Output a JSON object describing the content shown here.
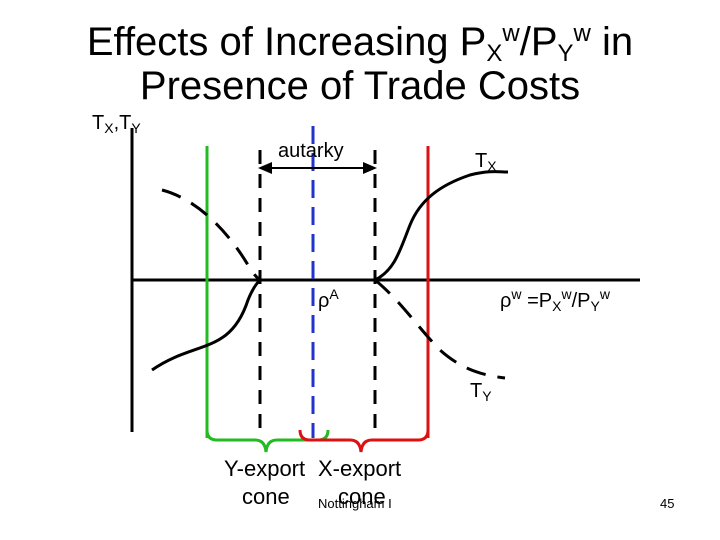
{
  "title": {
    "line1_a": "Effects of Increasing P",
    "sub_x": "X",
    "sup_w1": "w",
    "slash": "/P",
    "sub_y": "Y",
    "sup_w2": "w",
    "line1_b": " in",
    "line2": "Presence of Trade Costs"
  },
  "labels": {
    "y_axis_t": "T",
    "y_axis_sub_x": "X",
    "y_axis_comma": ",T",
    "y_axis_sub_y": "Y",
    "autarky": "autarky",
    "tx_t": "T",
    "tx_sub": "X",
    "ty_t": "T",
    "ty_sub": "Y",
    "rho_a": "ρ",
    "rho_a_sup": "A",
    "rho_w": "ρ",
    "rho_w_sup": "w",
    "rho_w_eq": " =P",
    "rho_w_sub_x": "X",
    "rho_w_sup_w1": "w",
    "rho_w_slash": "/P",
    "rho_w_sub_y": "Y",
    "rho_w_sup_w2": "w"
  },
  "cones": {
    "y_export": "Y-export",
    "x_export": "X-export",
    "cone_left": "cone",
    "cone_right": "cone"
  },
  "footer": {
    "source": "Nottingham I",
    "page": "45"
  },
  "colors": {
    "axis": "#000000",
    "green": "#22bb22",
    "red": "#dd1111",
    "blue": "#2233cc"
  }
}
